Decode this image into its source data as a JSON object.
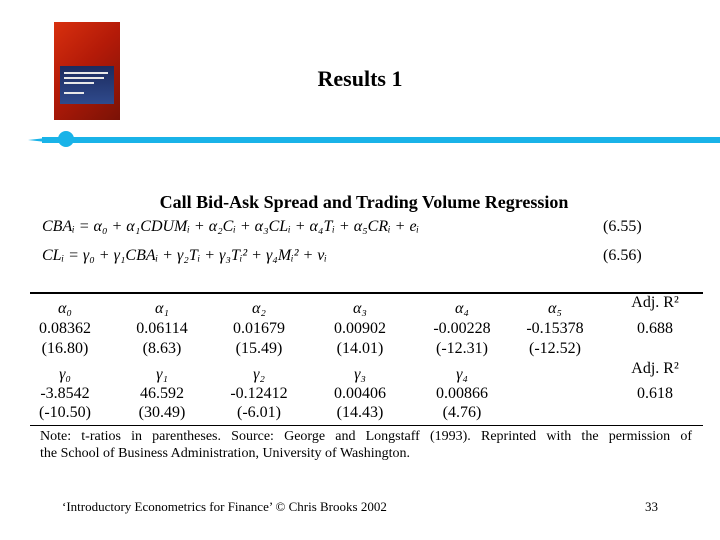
{
  "slide_title": "Results 1",
  "table_heading": "Call Bid-Ask Spread and Trading Volume Regression",
  "equations": [
    {
      "text": "CBAᵢ = α₀ + α₁CDUMᵢ + α₂Cᵢ + α₃CLᵢ + α₄Tᵢ + α₅CRᵢ + eᵢ",
      "number": "(6.55)"
    },
    {
      "text": "CLᵢ = γ₀ + γ₁CBAᵢ + γ₂Tᵢ + γ₃Tᵢ² + γ₄Mᵢ² + vᵢ",
      "number": "(6.56)"
    }
  ],
  "panel1": {
    "headers": [
      "α₀",
      "α₁",
      "α₂",
      "α₃",
      "α₄",
      "α₅"
    ],
    "coefficients": [
      "0.08362",
      "0.06114",
      "0.01679",
      "0.00902",
      "-0.00228",
      "-0.15378"
    ],
    "t_ratios": [
      "(16.80)",
      "(8.63)",
      "(15.49)",
      "(14.01)",
      "(-12.31)",
      "(-12.52)"
    ],
    "adj_label": "Adj. R²",
    "adj_value": "0.688"
  },
  "panel2": {
    "headers": [
      "γ₀",
      "γ₁",
      "γ₂",
      "γ₃",
      "γ₄"
    ],
    "coefficients": [
      "-3.8542",
      "46.592",
      "-0.12412",
      "0.00406",
      "0.00866"
    ],
    "t_ratios": [
      "(-10.50)",
      "(30.49)",
      "(-6.01)",
      "(14.43)",
      "(4.76)"
    ],
    "adj_label": "Adj. R²",
    "adj_value": "0.618"
  },
  "note": {
    "line1": "Note: t-ratios in parentheses. Source: George and Longstaff (1993). Reprinted with the permission of",
    "line2": "the School of Business Administration, University of Washington."
  },
  "footer": {
    "left": "‘Introductory Econometrics for Finance’ © Chris Brooks 2002",
    "page_number": "33"
  },
  "colors": {
    "accent": "#19b3e8",
    "book_red": "#c8240c"
  }
}
